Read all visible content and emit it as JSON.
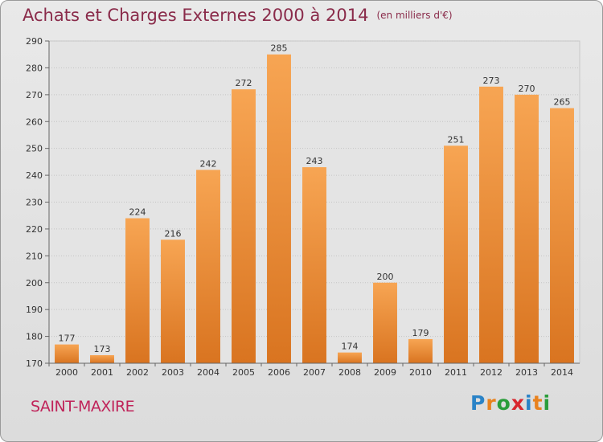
{
  "title": "Achats et Charges Externes 2000 à 2014",
  "unit_note": "(en milliers d'€)",
  "place_name": "SAINT-MAXIRE",
  "logo": {
    "letters": [
      "P",
      "r",
      "o",
      "x",
      "i",
      "t",
      "i"
    ],
    "colors": [
      "#2a83c7",
      "#e8821e",
      "#2a9d3a",
      "#d8262e",
      "#2a83c7",
      "#e8821e",
      "#2a9d3a"
    ]
  },
  "chart_data": {
    "type": "bar",
    "title": "Achats et Charges Externes 2000 à 2014",
    "categories": [
      "2000",
      "2001",
      "2002",
      "2003",
      "2004",
      "2005",
      "2006",
      "2007",
      "2008",
      "2009",
      "2010",
      "2011",
      "2012",
      "2013",
      "2014"
    ],
    "values": [
      177,
      173,
      224,
      216,
      242,
      272,
      285,
      243,
      174,
      200,
      179,
      251,
      273,
      270,
      265
    ],
    "ylim": [
      170,
      290
    ],
    "yticks": [
      170,
      180,
      190,
      200,
      210,
      220,
      230,
      240,
      250,
      260,
      270,
      280,
      290
    ],
    "grid": true,
    "bar_color_top": "#f7a553",
    "bar_color_bottom": "#d97420"
  }
}
